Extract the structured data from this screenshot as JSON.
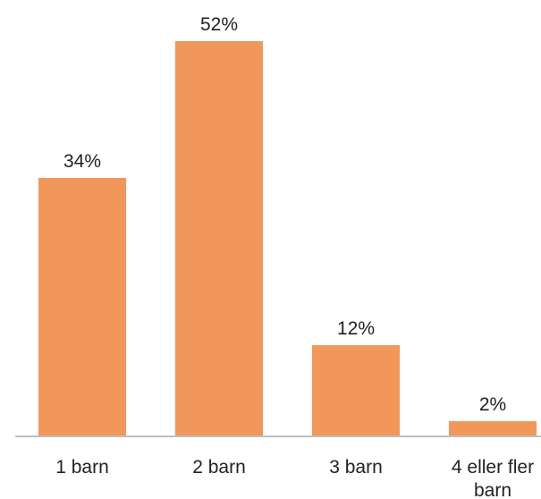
{
  "chart_data": {
    "type": "bar",
    "categories": [
      "1 barn",
      "2 barn",
      "3 barn",
      "4 eller fler barn"
    ],
    "category_lines": [
      [
        "1 barn"
      ],
      [
        "2 barn"
      ],
      [
        "3 barn"
      ],
      [
        "4 eller fler",
        "barn"
      ]
    ],
    "values": [
      34,
      52,
      12,
      2
    ],
    "value_labels": [
      "34%",
      "52%",
      "12%",
      "2%"
    ],
    "unit": "%",
    "title": "",
    "xlabel": "",
    "ylabel": "",
    "ylim": [
      0,
      52
    ],
    "grid": false,
    "legend": "none",
    "bar_color": "#F2975A",
    "axis_color": "#BFBFBF",
    "text_color": "#222222"
  }
}
